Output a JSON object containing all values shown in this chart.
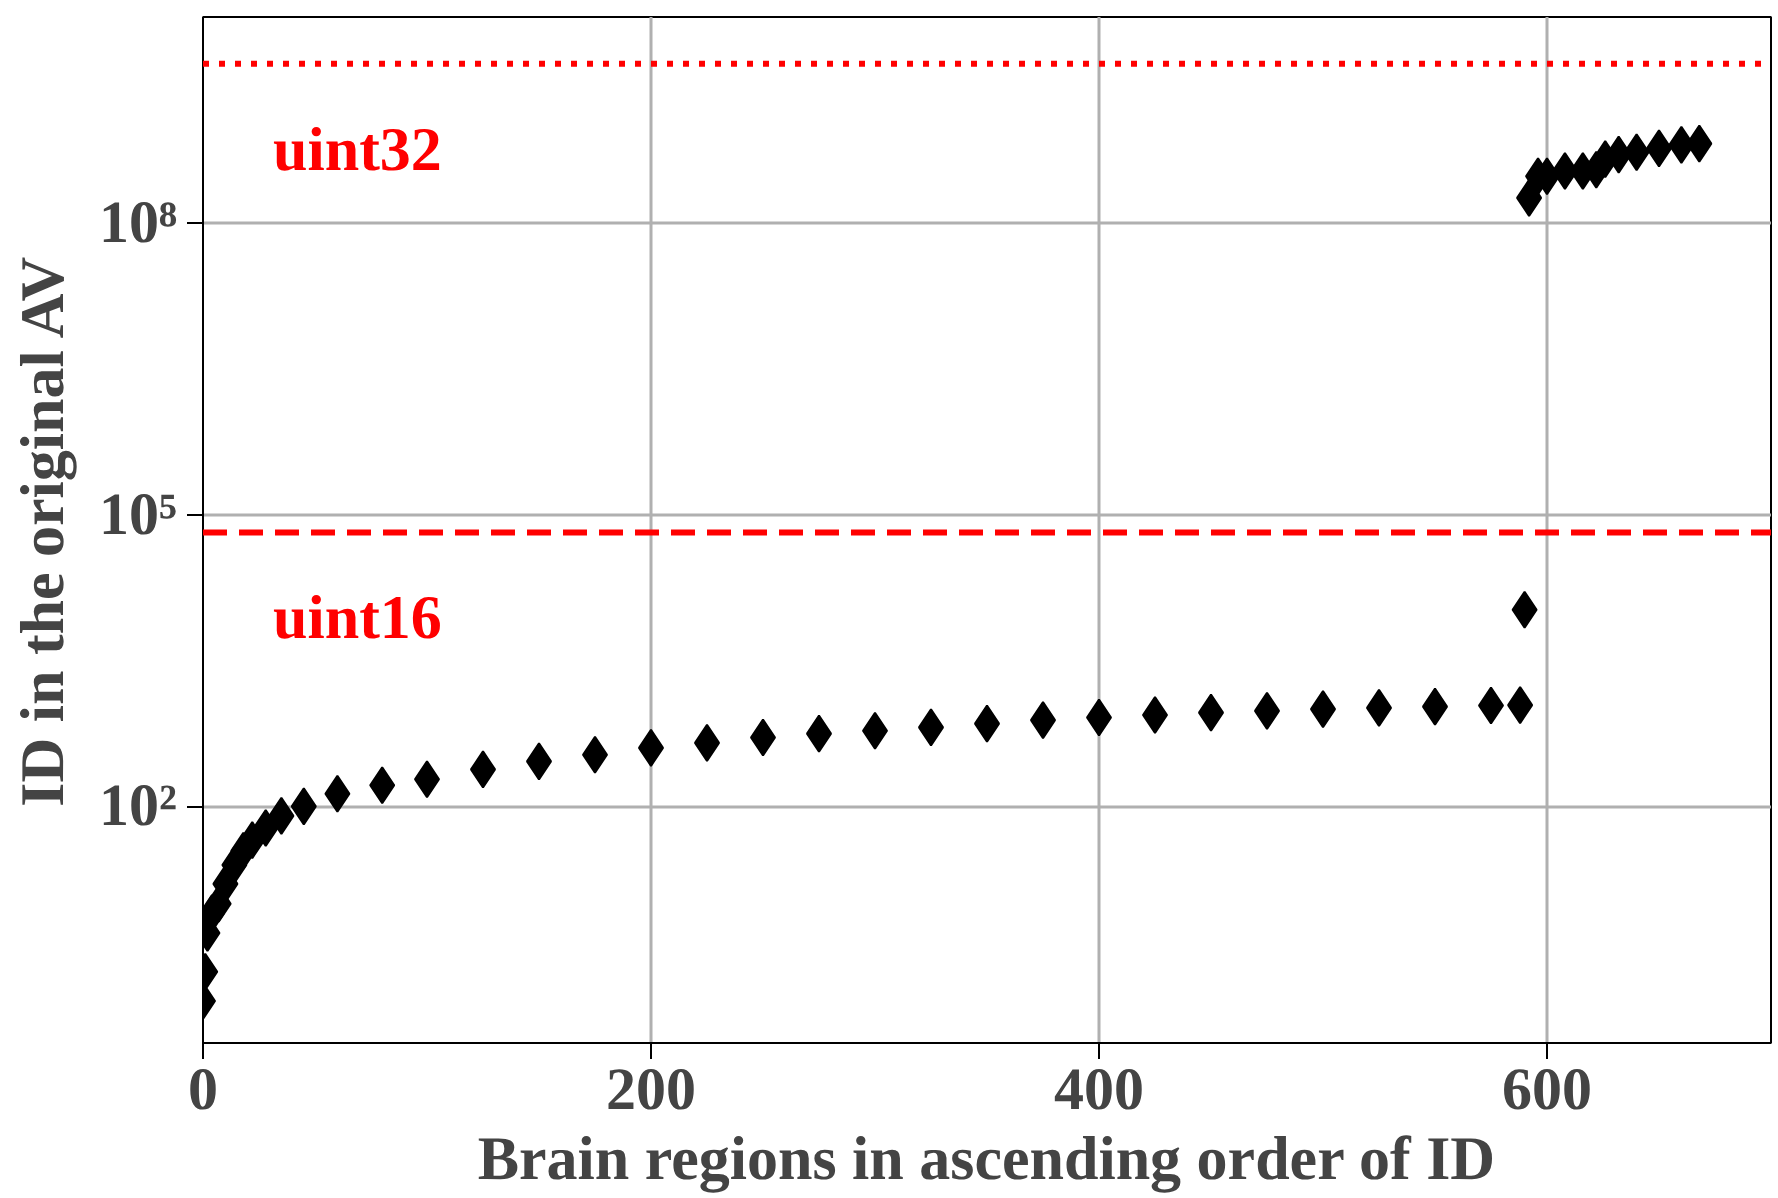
{
  "chart_data": {
    "type": "scatter",
    "xlabel": "Brain regions in ascending order of ID",
    "ylabel": "ID in the original AV",
    "x": [
      0,
      1,
      2,
      4,
      7,
      10,
      14,
      18,
      22,
      28,
      35,
      45,
      60,
      80,
      100,
      125,
      150,
      175,
      200,
      225,
      250,
      275,
      300,
      325,
      350,
      375,
      400,
      425,
      450,
      475,
      500,
      525,
      550,
      575,
      588,
      590,
      592,
      596,
      600,
      608,
      616,
      622,
      626,
      632,
      640,
      650,
      660,
      668
    ],
    "series": [
      {
        "color": "#000000",
        "values": [
          1,
          2,
          5,
          8,
          10,
          16,
          25,
          35,
          45,
          60,
          80,
          100,
          135,
          165,
          190,
          240,
          290,
          340,
          400,
          450,
          510,
          560,
          600,
          650,
          710,
          770,
          820,
          870,
          920,
          960,
          1000,
          1030,
          1060,
          1090,
          1100,
          10500,
          180000000,
          300000000,
          300000000,
          340000000,
          340000000,
          350000000,
          450000000,
          500000000,
          530000000,
          580000000,
          630000000,
          650000000
        ]
      }
    ],
    "log": "y",
    "xlim": [
      0,
      700
    ],
    "ylim": [
      0.37,
      13000000000
    ],
    "xticks": [
      0,
      200,
      400,
      600
    ],
    "yticks": [
      {
        "value": 100,
        "label": "10²"
      },
      {
        "value": 100000,
        "label": "10⁵"
      },
      {
        "value": 100000000,
        "label": "10⁸"
      }
    ],
    "ref_lines": [
      {
        "axis": "y",
        "value": 4294967295,
        "label": "uint32",
        "color": "#ff0000",
        "line_style": "dotted"
      },
      {
        "axis": "y",
        "value": 65535,
        "label": "uint16",
        "color": "#ff0000",
        "line_style": "dashed"
      }
    ],
    "grid": true,
    "marker": "diamond"
  }
}
